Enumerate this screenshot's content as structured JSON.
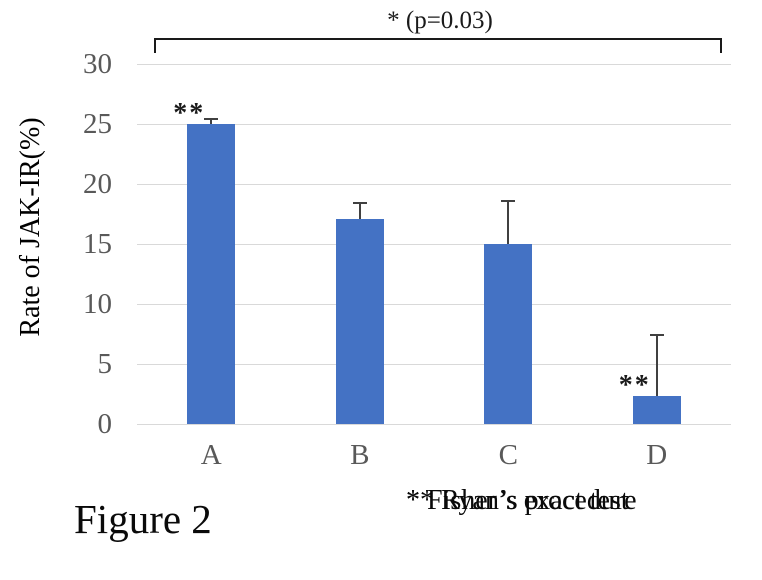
{
  "figure": {
    "caption": "Figure 2",
    "footnotes": [
      "* Fisher’s exact test",
      "** Ryan’s procedure"
    ]
  },
  "chart_data": {
    "type": "bar",
    "title": "",
    "xlabel": "",
    "ylabel": "Rate of JAK-IR(%)",
    "categories": [
      "A",
      "B",
      "C",
      "D"
    ],
    "values": [
      25,
      17.1,
      15,
      2.3
    ],
    "error_upper_top": [
      25.4,
      18.4,
      18.6,
      7.4
    ],
    "bar_annotations": [
      "**",
      "",
      "",
      "**"
    ],
    "yticks": [
      0,
      5,
      10,
      15,
      20,
      25,
      30
    ],
    "ylim": [
      0,
      30
    ],
    "grid": true,
    "legend": "none",
    "significance_bracket": {
      "from": "A",
      "to": "D",
      "label": "* (p=0.03)"
    },
    "colors": {
      "bar": "#4472C4",
      "error_bar": "#404040",
      "gridline": "#D9D9D9",
      "tick_label": "#595959",
      "category_label": "#595959",
      "annotation": "#1a1a1a"
    }
  }
}
